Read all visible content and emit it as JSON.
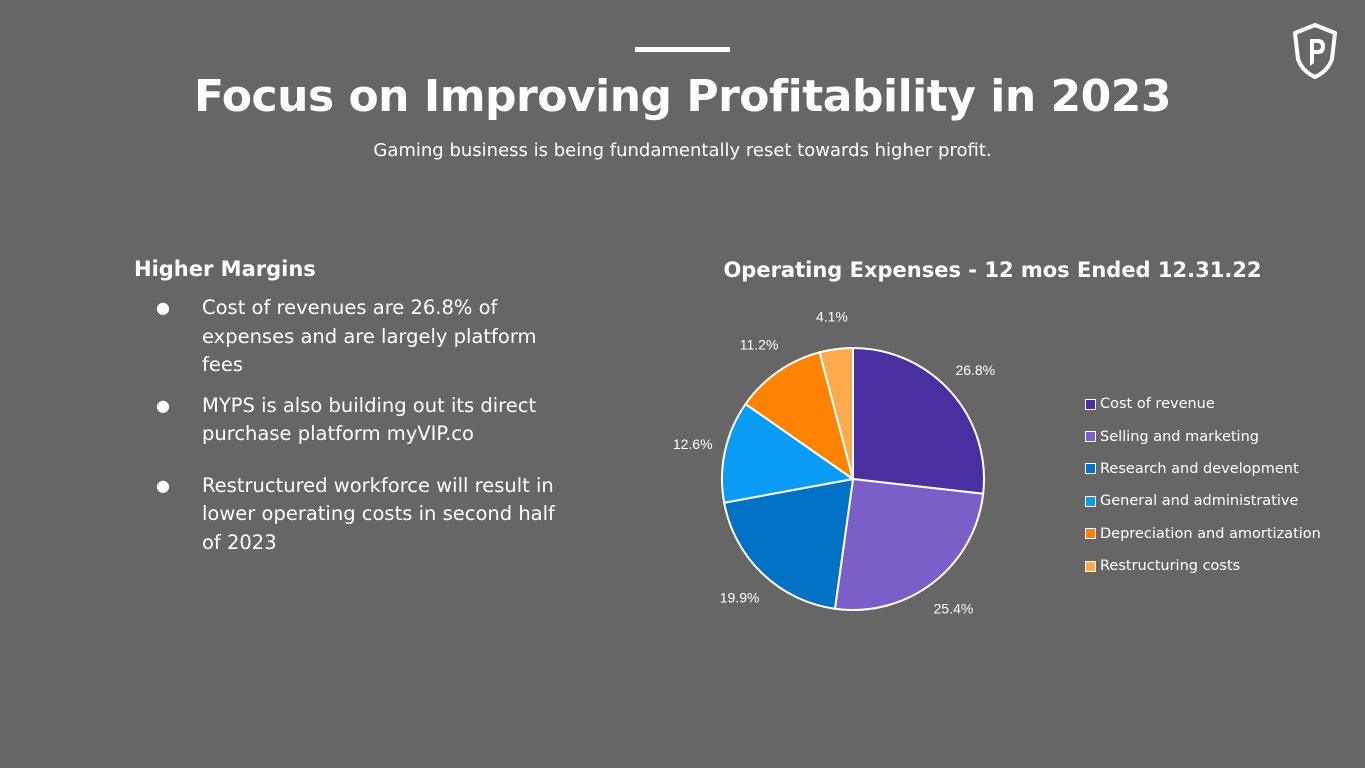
{
  "slide": {
    "title": "Focus on Improving Profitability in 2023",
    "subtitle": "Gaming business is being fundamentally reset towards higher profit."
  },
  "logo": {
    "icon": "shield-p-logo-icon"
  },
  "left_section": {
    "heading": "Higher Margins",
    "bullet_symbol": "●",
    "bullets": [
      "Cost of revenues are 26.8% of expenses and are largely platform fees",
      "MYPS is also building out its direct purchase platform myVIP.co",
      "Restructured workforce will result in lower operating costs in second half of 2023"
    ]
  },
  "chart_data": {
    "type": "pie",
    "title": "Operating Expenses - 12 mos Ended 12.31.22",
    "categories": [
      "Cost of revenue",
      "Selling and marketing",
      "Research and development",
      "General and administrative",
      "Depreciation and amortization",
      "Restructuring costs"
    ],
    "values": [
      26.8,
      25.4,
      19.9,
      12.6,
      11.2,
      4.1
    ],
    "labels": [
      "26.8%",
      "25.4%",
      "19.9%",
      "12.6%",
      "11.2%",
      "4.1%"
    ],
    "colors": [
      "#4a2fa0",
      "#7b5fc8",
      "#0071c5",
      "#0a9cf5",
      "#ff8200",
      "#ffaa4d"
    ],
    "start_angle_deg": 0,
    "direction": "clockwise",
    "legend_position": "right"
  }
}
